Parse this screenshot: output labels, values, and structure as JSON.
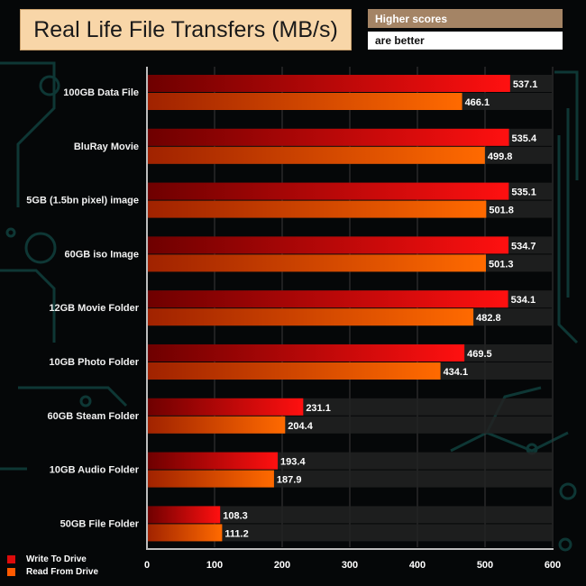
{
  "title": "Real Life File Transfers (MB/s)",
  "note": {
    "line1": "Higher scores",
    "line2": "are better"
  },
  "colors": {
    "write_light": "#ff1010",
    "write_dark": "#6e0000",
    "read_light": "#ff6a00",
    "read_dark": "#a02200",
    "track": "#222222"
  },
  "chart_data": {
    "type": "bar",
    "orientation": "horizontal",
    "title": "Real Life File Transfers (MB/s)",
    "categories": [
      "100GB Data File",
      "BluRay Movie",
      "5GB (1.5bn pixel) image",
      "60GB iso Image",
      "12GB Movie Folder",
      "10GB Photo Folder",
      "60GB Steam Folder",
      "10GB Audio Folder",
      "50GB File Folder"
    ],
    "series": [
      {
        "name": "Write To  Drive",
        "values": [
          537.1,
          535.4,
          535.1,
          534.7,
          534.1,
          469.5,
          231.1,
          193.4,
          108.3
        ]
      },
      {
        "name": "Read From  Drive",
        "values": [
          466.1,
          499.8,
          501.8,
          501.3,
          482.8,
          434.1,
          204.4,
          187.9,
          111.2
        ]
      }
    ],
    "value_labels": {
      "write": [
        "537.1",
        "535.4",
        "535.1",
        "534.7",
        "534.1",
        "469.5",
        "231.1",
        "193.4",
        "108.3"
      ],
      "read": [
        "466.1",
        "499.8",
        "501.8",
        "501.3",
        "482.8",
        "434.1",
        "204.4",
        "187.9",
        "111.2"
      ]
    },
    "xlim": [
      0,
      600
    ],
    "xticks": [
      "0",
      "100",
      "200",
      "300",
      "400",
      "500",
      "600"
    ],
    "xlabel": "",
    "ylabel": "",
    "legend": "bottom-left"
  }
}
